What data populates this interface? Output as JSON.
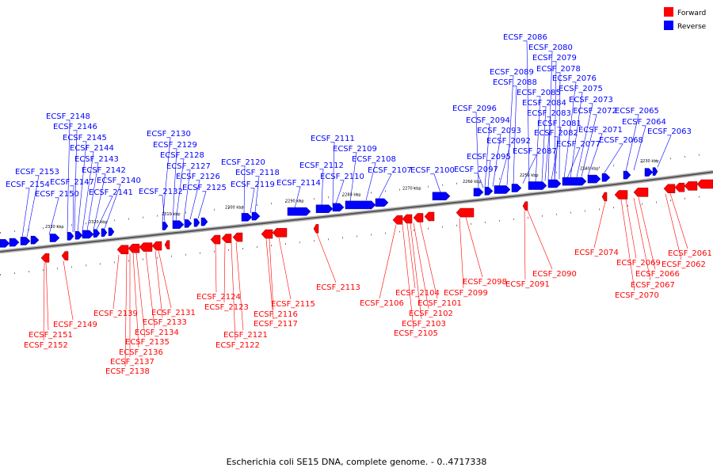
{
  "legend": {
    "forward_label": "Forward",
    "reverse_label": "Reverse",
    "forward_color": "#ff0000",
    "reverse_color": "#0000ff"
  },
  "caption": "Escherichia coli SE15 DNA, complete genome. - 0..4717338",
  "kbp_ticks": [
    "2330 kbp",
    "2320 kbp",
    "2310 kbp",
    "2300 kbp",
    "2290 kbp",
    "2280 kbp",
    "2270 kbp",
    "2260 kbp",
    "2250 kbp",
    "2240 kbp",
    "2230 kbp"
  ],
  "reverse_genes": [
    "ECSF_2154",
    "ECSF_2153",
    "ECSF_2150",
    "ECSF_2148",
    "ECSF_2147",
    "ECSF_2146",
    "ECSF_2145",
    "ECSF_2144",
    "ECSF_2143",
    "ECSF_2142",
    "ECSF_2141",
    "ECSF_2140",
    "ECSF_2132",
    "ECSF_2130",
    "ECSF_2129",
    "ECSF_2128",
    "ECSF_2127",
    "ECSF_2126",
    "ECSF_2125",
    "ECSF_2120",
    "ECSF_2119",
    "ECSF_2118",
    "ECSF_2114",
    "ECSF_2112",
    "ECSF_2111",
    "ECSF_2110",
    "ECSF_2109",
    "ECSF_2108",
    "ECSF_2107",
    "ECSF_2100",
    "ECSF_2097",
    "ECSF_2096",
    "ECSF_2095",
    "ECSF_2094",
    "ECSF_2093",
    "ECSF_2092",
    "ECSF_2089",
    "ECSF_2088",
    "ECSF_2087",
    "ECSF_2086",
    "ECSF_2085",
    "ECSF_2084",
    "ECSF_2083",
    "ECSF_2082",
    "ECSF_2081",
    "ECSF_2080",
    "ECSF_2079",
    "ECSF_2078",
    "ECSF_2077",
    "ECSF_2076",
    "ECSF_2075",
    "ECSF_2073",
    "ECSF_2072",
    "ECSF_2071",
    "ECSF_2068",
    "ECSF_2065",
    "ECSF_2064",
    "ECSF_2063"
  ],
  "forward_genes": [
    "ECSF_2152",
    "ECSF_2151",
    "ECSF_2149",
    "ECSF_2139",
    "ECSF_2138",
    "ECSF_2137",
    "ECSF_2136",
    "ECSF_2135",
    "ECSF_2134",
    "ECSF_2133",
    "ECSF_2131",
    "ECSF_2124",
    "ECSF_2123",
    "ECSF_2122",
    "ECSF_2121",
    "ECSF_2117",
    "ECSF_2116",
    "ECSF_2115",
    "ECSF_2113",
    "ECSF_2106",
    "ECSF_2105",
    "ECSF_2104",
    "ECSF_2103",
    "ECSF_2102",
    "ECSF_2101",
    "ECSF_2099",
    "ECSF_2098",
    "ECSF_2091",
    "ECSF_2090",
    "ECSF_2074",
    "ECSF_2070",
    "ECSF_2069",
    "ECSF_2067",
    "ECSF_2066",
    "ECSF_2062",
    "ECSF_2061"
  ]
}
